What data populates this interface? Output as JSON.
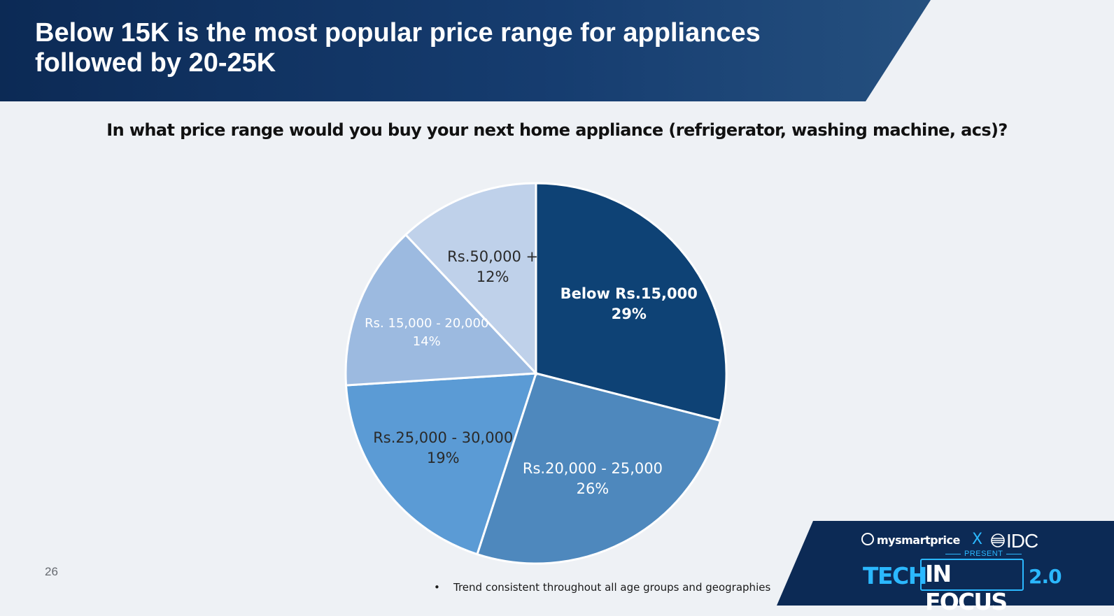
{
  "slide": {
    "title": "Below 15K is the most popular price range for appliances\nfollowed by 20-25K",
    "question": "In what price range would you buy your next home appliance (refrigerator, washing machine, acs)?",
    "page_number": "26",
    "footnote_bullet": "•",
    "footnote": "Trend consistent throughout all age groups and geographies"
  },
  "branding": {
    "mysmartprice": "mysmartprice",
    "x": "X",
    "idc": "IDC",
    "present": "PRESENT",
    "tech": "TECH",
    "in_focus": "IN FOCUS",
    "version": "2.0",
    "colors": {
      "navy": "#0c2a55",
      "cyan": "#2bb8ff"
    }
  },
  "chart_data": {
    "type": "pie",
    "title": "",
    "slices": [
      {
        "label": "Below Rs.15,000",
        "value": 29,
        "value_label": "29%",
        "color": "#0e4275",
        "text_color": "#ffffff",
        "bold": true
      },
      {
        "label": "Rs.20,000 - 25,000",
        "value": 26,
        "value_label": "26%",
        "color": "#4e88bd",
        "text_color": "#ffffff",
        "bold": false
      },
      {
        "label": "Rs.25,000 - 30,000",
        "value": 19,
        "value_label": "19%",
        "color": "#5b9bd5",
        "text_color": "#2a2a2a",
        "bold": false
      },
      {
        "label": "Rs. 15,000 - 20,000",
        "value": 14,
        "value_label": "14%",
        "color": "#9cbae0",
        "text_color": "#ffffff",
        "bold": false
      },
      {
        "label": "Rs.50,000 +",
        "value": 12,
        "value_label": "12%",
        "color": "#bfd1ea",
        "text_color": "#2a2a2a",
        "bold": false
      }
    ],
    "start_angle": "12 o'clock",
    "direction": "clockwise",
    "legend": "none (labels inside slices)"
  }
}
